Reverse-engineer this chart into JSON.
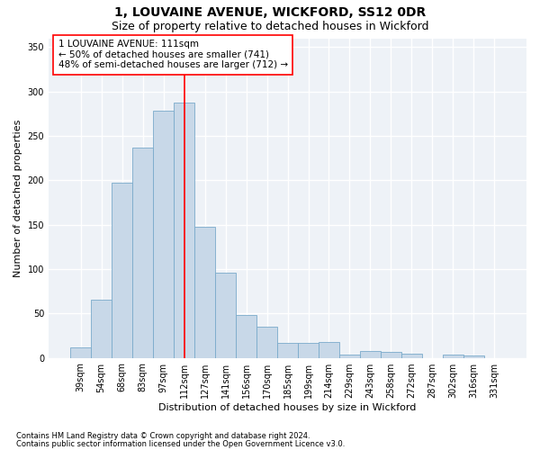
{
  "title1": "1, LOUVAINE AVENUE, WICKFORD, SS12 0DR",
  "title2": "Size of property relative to detached houses in Wickford",
  "xlabel": "Distribution of detached houses by size in Wickford",
  "ylabel": "Number of detached properties",
  "footnote1": "Contains HM Land Registry data © Crown copyright and database right 2024.",
  "footnote2": "Contains public sector information licensed under the Open Government Licence v3.0.",
  "categories": [
    "39sqm",
    "54sqm",
    "68sqm",
    "83sqm",
    "97sqm",
    "112sqm",
    "127sqm",
    "141sqm",
    "156sqm",
    "170sqm",
    "185sqm",
    "199sqm",
    "214sqm",
    "229sqm",
    "243sqm",
    "258sqm",
    "272sqm",
    "287sqm",
    "302sqm",
    "316sqm",
    "331sqm"
  ],
  "values": [
    12,
    65,
    197,
    237,
    278,
    288,
    148,
    96,
    48,
    35,
    17,
    17,
    18,
    4,
    8,
    7,
    5,
    0,
    4,
    3,
    0
  ],
  "bar_color": "#c8d8e8",
  "bar_edge_color": "#7aaacb",
  "vline_x": 5,
  "vline_color": "red",
  "annotation_text": "1 LOUVAINE AVENUE: 111sqm\n← 50% of detached houses are smaller (741)\n48% of semi-detached houses are larger (712) →",
  "annotation_box_color": "white",
  "annotation_box_edge": "red",
  "ylim": [
    0,
    360
  ],
  "yticks": [
    0,
    50,
    100,
    150,
    200,
    250,
    300,
    350
  ],
  "bg_color": "#eef2f7",
  "grid_color": "white",
  "title1_fontsize": 10,
  "title2_fontsize": 9,
  "xlabel_fontsize": 8,
  "ylabel_fontsize": 8,
  "tick_fontsize": 7,
  "annotation_fontsize": 7.5,
  "footnote_fontsize": 6
}
